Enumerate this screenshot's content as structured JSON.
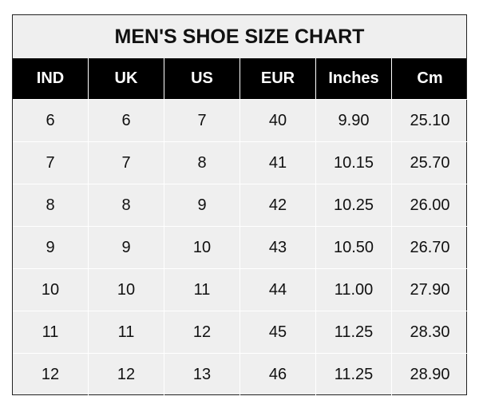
{
  "title": "MEN'S SHOE SIZE CHART",
  "chart_data": {
    "type": "table",
    "title": "MEN'S SHOE SIZE CHART",
    "columns": [
      "IND",
      "UK",
      "US",
      "EUR",
      "Inches",
      "Cm"
    ],
    "rows": [
      [
        "6",
        "6",
        "7",
        "40",
        "9.90",
        "25.10"
      ],
      [
        "7",
        "7",
        "8",
        "41",
        "10.15",
        "25.70"
      ],
      [
        "8",
        "8",
        "9",
        "42",
        "10.25",
        "26.00"
      ],
      [
        "9",
        "9",
        "10",
        "43",
        "10.50",
        "26.70"
      ],
      [
        "10",
        "10",
        "11",
        "44",
        "11.00",
        "27.90"
      ],
      [
        "11",
        "11",
        "12",
        "45",
        "11.25",
        "28.30"
      ],
      [
        "12",
        "12",
        "13",
        "46",
        "11.25",
        "28.90"
      ]
    ]
  },
  "colors": {
    "header_bg": "#000000",
    "body_bg": "#efefef",
    "grid": "#ffffff"
  }
}
